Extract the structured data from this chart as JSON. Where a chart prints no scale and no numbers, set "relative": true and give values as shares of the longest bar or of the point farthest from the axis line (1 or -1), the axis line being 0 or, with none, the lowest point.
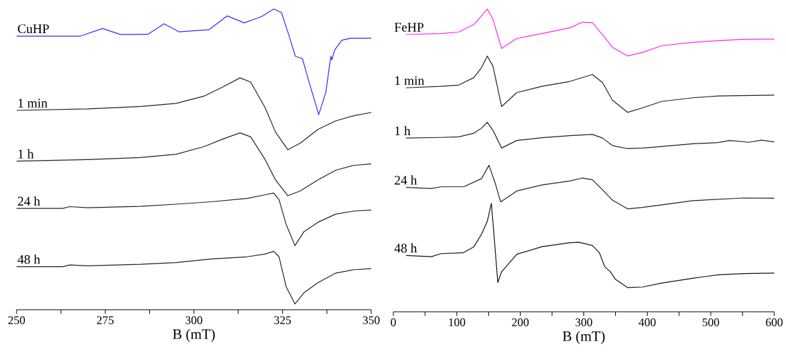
{
  "chart_data": [
    {
      "type": "line",
      "relative": true,
      "xlabel": "B (mT)",
      "xlim": [
        250,
        350
      ],
      "xticks": [
        250,
        {
          "value": 262.5,
          "label": null
        },
        275,
        {
          "value": 287.5,
          "label": null
        },
        300,
        {
          "value": 312.5,
          "label": null
        },
        325,
        {
          "value": 337.5,
          "label": null
        },
        350
      ],
      "series": [
        {
          "name": "CuHP",
          "color": "#2b2bff",
          "x": [
            250,
            263,
            268,
            274.2,
            279.4,
            287,
            291.6,
            295.8,
            304.2,
            309.4,
            314.2,
            319.1,
            322.5,
            324.7,
            326.8,
            328.6,
            330.6,
            332.3,
            335.2,
            337.2,
            338.6,
            338.9,
            339.7,
            341.7,
            344.2,
            350
          ],
          "values": [
            0.91,
            0.91,
            0.91,
            0.935,
            0.915,
            0.916,
            0.951,
            0.924,
            0.931,
            0.977,
            0.954,
            0.975,
            1.0,
            0.988,
            0.912,
            0.843,
            0.835,
            0.764,
            0.649,
            0.723,
            0.843,
            0.831,
            0.864,
            0.896,
            0.903,
            0.903
          ]
        },
        {
          "name": "1 min",
          "color": "#222222",
          "x": [
            250,
            270,
            285,
            295,
            303,
            308,
            313,
            316,
            320,
            323,
            326.5,
            330,
            335,
            340,
            345,
            350
          ],
          "values": [
            0.663,
            0.668,
            0.676,
            0.686,
            0.711,
            0.74,
            0.771,
            0.757,
            0.674,
            0.591,
            0.532,
            0.554,
            0.6,
            0.628,
            0.645,
            0.656
          ]
        },
        {
          "name": "1 h",
          "color": "#222222",
          "x": [
            250,
            270,
            285,
            295,
            303,
            308,
            313,
            316,
            320,
            323,
            326.5,
            330,
            335,
            340,
            345,
            350
          ],
          "values": [
            0.494,
            0.499,
            0.506,
            0.517,
            0.543,
            0.567,
            0.588,
            0.575,
            0.501,
            0.432,
            0.379,
            0.395,
            0.432,
            0.464,
            0.48,
            0.485
          ]
        },
        {
          "name": "24 h",
          "color": "#222222",
          "x": [
            250,
            263,
            265,
            270,
            285,
            295,
            305,
            315,
            320,
            322.5,
            324,
            326,
            328.5,
            331,
            335,
            340,
            345,
            350
          ],
          "values": [
            0.337,
            0.337,
            0.343,
            0.339,
            0.344,
            0.351,
            0.359,
            0.37,
            0.382,
            0.388,
            0.366,
            0.284,
            0.213,
            0.259,
            0.291,
            0.318,
            0.328,
            0.331
          ]
        },
        {
          "name": "48 h",
          "color": "#222222",
          "x": [
            250,
            263,
            265,
            270,
            285,
            295,
            305,
            315,
            320,
            322.5,
            324,
            326,
            328.5,
            331,
            335,
            340,
            345,
            350
          ],
          "values": [
            0.143,
            0.143,
            0.149,
            0.146,
            0.151,
            0.157,
            0.169,
            0.176,
            0.185,
            0.194,
            0.176,
            0.077,
            0.019,
            0.056,
            0.09,
            0.122,
            0.133,
            0.137
          ]
        }
      ]
    },
    {
      "type": "line",
      "relative": true,
      "xlabel": "B (mT)",
      "xlim": [
        0,
        600
      ],
      "xticks": [
        0,
        {
          "value": 50,
          "label": null
        },
        100,
        {
          "value": 150,
          "label": null
        },
        200,
        {
          "value": 250,
          "label": null
        },
        300,
        {
          "value": 350,
          "label": null
        },
        400,
        {
          "value": 450,
          "label": null
        },
        500,
        {
          "value": 550,
          "label": null
        },
        600
      ],
      "series": [
        {
          "name": "FeHP",
          "color": "#ff22ff",
          "x": [
            20,
            75,
            103,
            127,
            139,
            148,
            157,
            170.5,
            194.4,
            234,
            278,
            298,
            313.5,
            329.5,
            345,
            369,
            393,
            422.7,
            472,
            512,
            552,
            600
          ],
          "values": [
            0.916,
            0.919,
            0.924,
            0.949,
            0.978,
            1.0,
            0.966,
            0.87,
            0.903,
            0.919,
            0.938,
            0.957,
            0.955,
            0.915,
            0.874,
            0.845,
            0.857,
            0.879,
            0.89,
            0.896,
            0.9,
            0.901
          ]
        },
        {
          "name": "1 min",
          "color": "#222222",
          "x": [
            20,
            75,
            103,
            127,
            139,
            148,
            157,
            170.5,
            194.4,
            234,
            278,
            313.5,
            329.5,
            345,
            369,
            393,
            422.7,
            472,
            512,
            600
          ],
          "values": [
            0.74,
            0.745,
            0.749,
            0.774,
            0.807,
            0.845,
            0.811,
            0.678,
            0.724,
            0.745,
            0.761,
            0.784,
            0.757,
            0.699,
            0.659,
            0.674,
            0.695,
            0.707,
            0.713,
            0.716
          ]
        },
        {
          "name": "1 h",
          "color": "#222222",
          "x": [
            20,
            75,
            103,
            127,
            139,
            148,
            157,
            170.5,
            194.4,
            234,
            278,
            313.5,
            329.5,
            345,
            369,
            393,
            422.7,
            472,
            512,
            530,
            560,
            580,
            600
          ],
          "values": [
            0.574,
            0.576,
            0.578,
            0.59,
            0.607,
            0.626,
            0.599,
            0.541,
            0.566,
            0.575,
            0.582,
            0.586,
            0.574,
            0.549,
            0.539,
            0.541,
            0.546,
            0.555,
            0.559,
            0.566,
            0.56,
            0.567,
            0.561
          ]
        },
        {
          "name": "24 h",
          "color": "#222222",
          "x": [
            20,
            59.5,
            75,
            110.9,
            139,
            150.6,
            160.6,
            169,
            194.4,
            234,
            278,
            298,
            313.5,
            329.5,
            345,
            369,
            393,
            472,
            552,
            600
          ],
          "values": [
            0.411,
            0.407,
            0.413,
            0.413,
            0.44,
            0.484,
            0.424,
            0.363,
            0.399,
            0.419,
            0.432,
            0.442,
            0.436,
            0.403,
            0.369,
            0.34,
            0.345,
            0.367,
            0.376,
            0.375
          ]
        },
        {
          "name": "48 h",
          "color": "#111111",
          "x": [
            20,
            60,
            75,
            110,
            127,
            139,
            148,
            154.4,
            159.4,
            164.5,
            170.5,
            194.4,
            234,
            278,
            292,
            313.5,
            324.6,
            333,
            342,
            350,
            369,
            393,
            422.7,
            472,
            512,
            552,
            600
          ],
          "values": [
            0.186,
            0.182,
            0.192,
            0.195,
            0.215,
            0.257,
            0.299,
            0.358,
            0.232,
            0.097,
            0.132,
            0.19,
            0.215,
            0.228,
            0.23,
            0.219,
            0.195,
            0.149,
            0.132,
            0.107,
            0.08,
            0.082,
            0.095,
            0.111,
            0.122,
            0.126,
            0.128
          ]
        }
      ]
    }
  ]
}
